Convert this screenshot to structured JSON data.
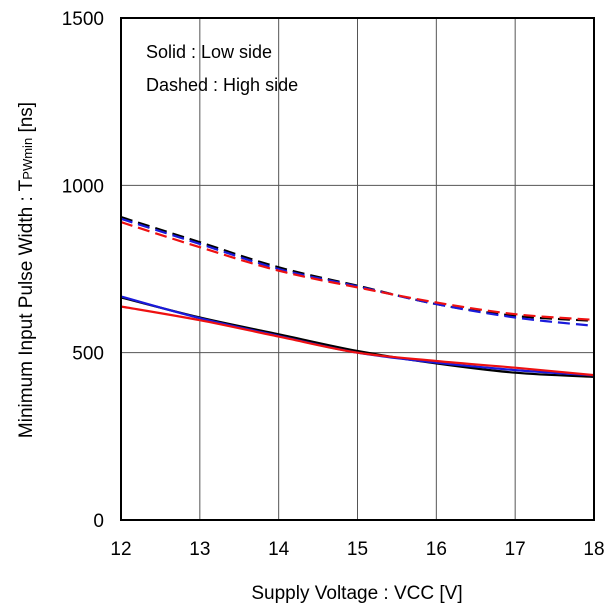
{
  "chart_data": {
    "type": "line",
    "title": "",
    "xlabel": "Supply Voltage : VCC [V]",
    "ylabel": "Minimum Input Pulse Width : T",
    "ylabel_sub": "PWmin",
    "ylabel_unit": " [ns]",
    "xlim": [
      12,
      18
    ],
    "ylim": [
      0,
      1500
    ],
    "xticks": [
      "12",
      "13",
      "14",
      "15",
      "16",
      "17",
      "18"
    ],
    "yticks": [
      "0",
      "500",
      "1000",
      "1500"
    ],
    "grid": true,
    "annotations": [
      "Solid : Low side",
      "Dashed : High side"
    ],
    "colors": {
      "black": "#000000",
      "blue": "#1a1adb",
      "red": "#ee1111"
    },
    "series": [
      {
        "style": "solid",
        "color": "black",
        "x": [
          12,
          13,
          14,
          15,
          16,
          17,
          18
        ],
        "y": [
          665,
          605,
          555,
          505,
          468,
          440,
          428
        ]
      },
      {
        "style": "solid",
        "color": "blue",
        "x": [
          12,
          13,
          14,
          15,
          16,
          17,
          18
        ],
        "y": [
          668,
          603,
          550,
          500,
          470,
          448,
          432
        ]
      },
      {
        "style": "solid",
        "color": "red",
        "x": [
          12,
          13,
          14,
          15,
          16,
          17,
          18
        ],
        "y": [
          638,
          597,
          548,
          500,
          475,
          455,
          433
        ]
      },
      {
        "style": "dashed",
        "color": "black",
        "x": [
          12,
          13,
          14,
          15,
          16,
          17,
          18
        ],
        "y": [
          905,
          830,
          755,
          700,
          645,
          610,
          595
        ]
      },
      {
        "style": "dashed",
        "color": "blue",
        "x": [
          12,
          13,
          14,
          15,
          16,
          17,
          18
        ],
        "y": [
          900,
          825,
          750,
          698,
          645,
          605,
          580
        ]
      },
      {
        "style": "dashed",
        "color": "red",
        "x": [
          12,
          13,
          14,
          15,
          16,
          17,
          18
        ],
        "y": [
          890,
          815,
          745,
          695,
          650,
          615,
          598
        ]
      }
    ]
  }
}
